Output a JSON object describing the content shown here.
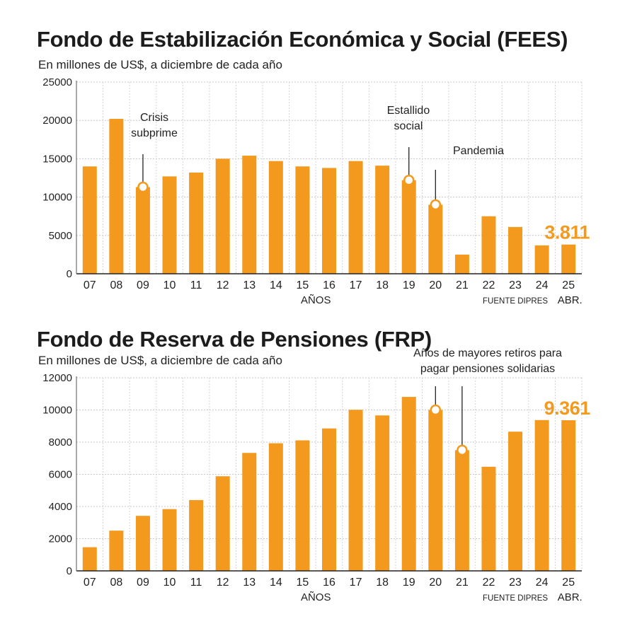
{
  "chart_data": [
    {
      "type": "bar",
      "title": "Fondo de Estabilización Económica y Social (FEES)",
      "subtitle": "En millones de US$, a diciembre de cada año",
      "categories": [
        "07",
        "08",
        "09",
        "10",
        "11",
        "12",
        "13",
        "14",
        "15",
        "16",
        "17",
        "18",
        "19",
        "20",
        "21",
        "22",
        "23",
        "24",
        "25"
      ],
      "last_category_suffix": "ABR.",
      "values": [
        14000,
        20200,
        11300,
        12700,
        13200,
        15000,
        15400,
        14700,
        14000,
        13800,
        14700,
        14100,
        12200,
        9000,
        2500,
        7500,
        6100,
        3700,
        3811
      ],
      "ylim": [
        0,
        25000
      ],
      "yticks": [
        0,
        5000,
        10000,
        15000,
        20000,
        25000
      ],
      "xlabel": "AÑOS",
      "source": "FUENTE DIPRES",
      "highlight_label": "3.811",
      "grid": true,
      "bar_color": "#f39a1e",
      "annotations": [
        {
          "lines": [
            "Crisis",
            "subprime"
          ],
          "category": "09"
        },
        {
          "lines": [
            "Estallido",
            "social"
          ],
          "category": "19"
        },
        {
          "lines": [
            "Pandemia"
          ],
          "category": "20"
        }
      ]
    },
    {
      "type": "bar",
      "title": "Fondo de Reserva de Pensiones (FRP)",
      "subtitle": "En millones de US$, a diciembre de cada año",
      "categories": [
        "07",
        "08",
        "09",
        "10",
        "11",
        "12",
        "13",
        "14",
        "15",
        "16",
        "17",
        "18",
        "19",
        "20",
        "21",
        "22",
        "23",
        "24",
        "25"
      ],
      "last_category_suffix": "ABR.",
      "values": [
        1470,
        2500,
        3420,
        3840,
        4400,
        5880,
        7330,
        7930,
        8110,
        8850,
        10010,
        9660,
        10810,
        10000,
        7500,
        6470,
        8650,
        9370,
        9361
      ],
      "ylim": [
        0,
        12000
      ],
      "yticks": [
        0,
        2000,
        4000,
        6000,
        8000,
        10000,
        12000
      ],
      "xlabel": "AÑOS",
      "source": "FUENTE DIPRES",
      "highlight_label": "9.361",
      "grid": true,
      "bar_color": "#f39a1e",
      "annotations": [
        {
          "lines": [
            "Años de mayores retiros para",
            "pagar pensiones solidarias"
          ],
          "markers": [
            "20",
            "21"
          ]
        }
      ]
    }
  ]
}
